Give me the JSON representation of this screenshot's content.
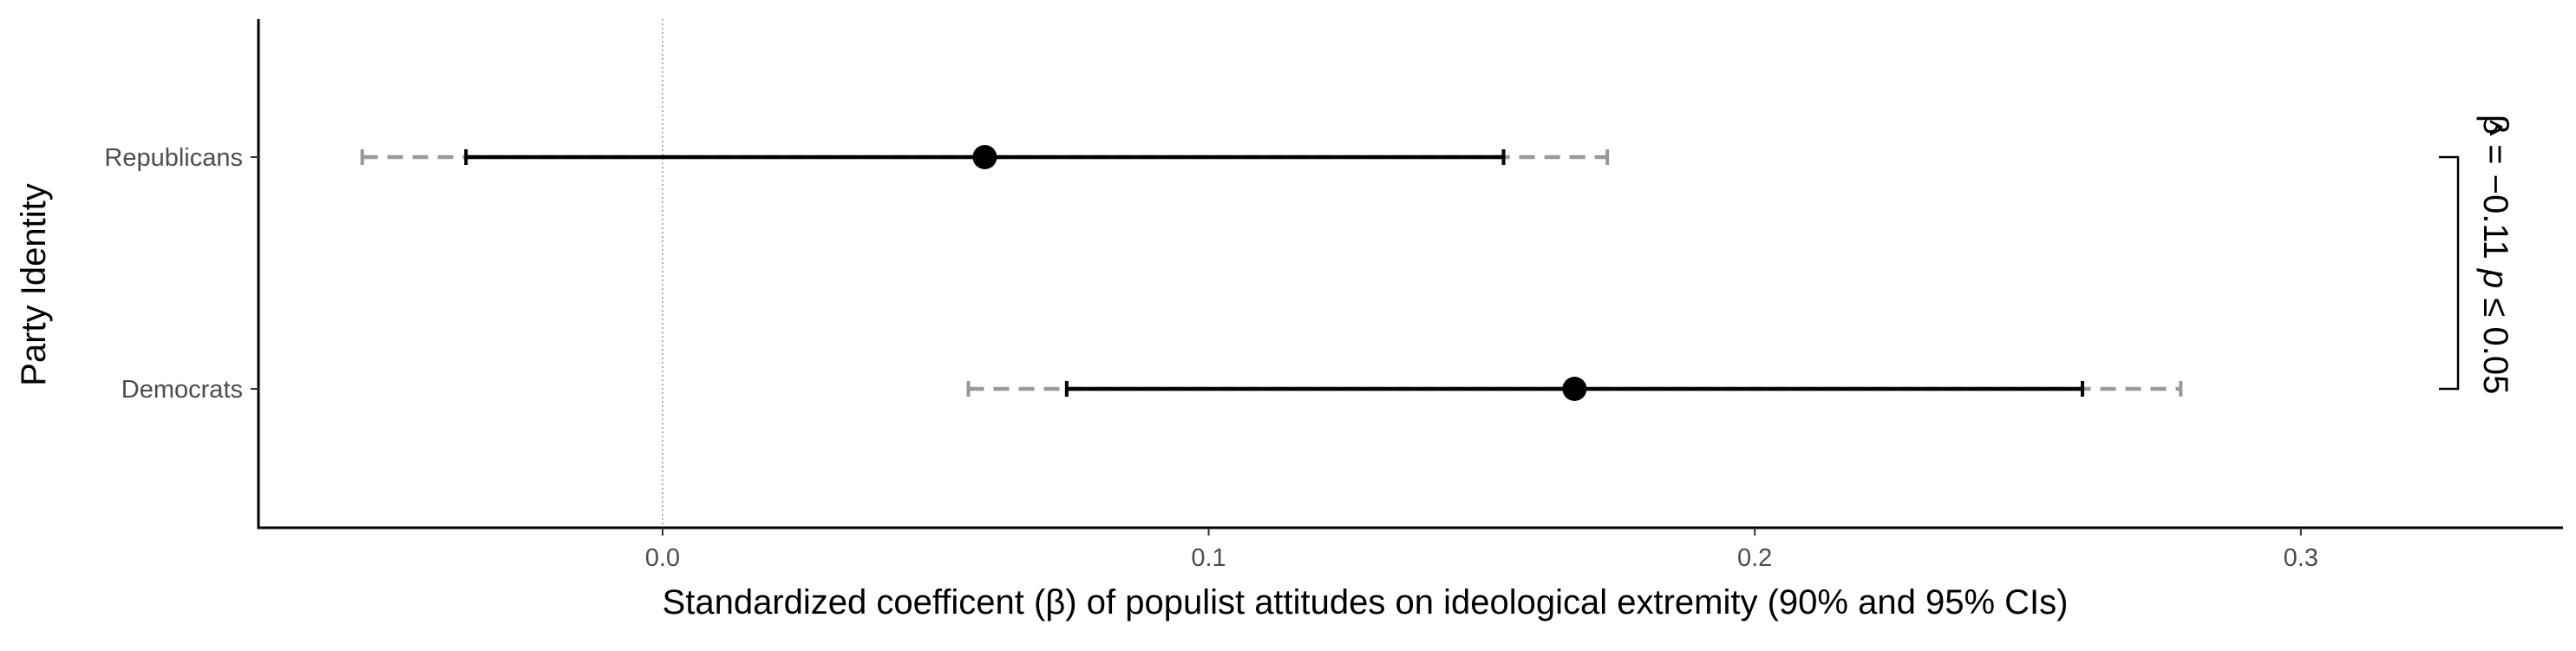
{
  "chart_data": {
    "type": "coefficient-plot",
    "xlabel": "Standardized coefficent (β) of populist attitudes on ideological extremity (90% and 95% CIs)",
    "ylabel": "Party Identity",
    "xlim": [
      -0.074,
      0.348
    ],
    "x_ticks": [
      0.0,
      0.1,
      0.2,
      0.3
    ],
    "x_tick_labels": [
      "0.0",
      "0.1",
      "0.2",
      "0.3"
    ],
    "reference_line_x": 0.0,
    "grid": false,
    "categories": [
      "Republicans",
      "Democrats"
    ],
    "estimates": [
      {
        "group": "Republicans",
        "estimate": 0.059,
        "ci90": [
          -0.036,
          0.154
        ],
        "ci95": [
          -0.055,
          0.173
        ]
      },
      {
        "group": "Democrats",
        "estimate": 0.167,
        "ci90": [
          0.074,
          0.26
        ],
        "ci95": [
          0.056,
          0.278
        ]
      }
    ],
    "annotation": {
      "beta_symbol": "β",
      "hat": "^",
      "relation": " = −0.11 ",
      "p_symbol": "p",
      "p_relation": " ≤ 0.05"
    },
    "colors": {
      "ci90": "#000000",
      "ci95": "#999999",
      "point": "#000000",
      "reference_line": "#999999"
    }
  }
}
